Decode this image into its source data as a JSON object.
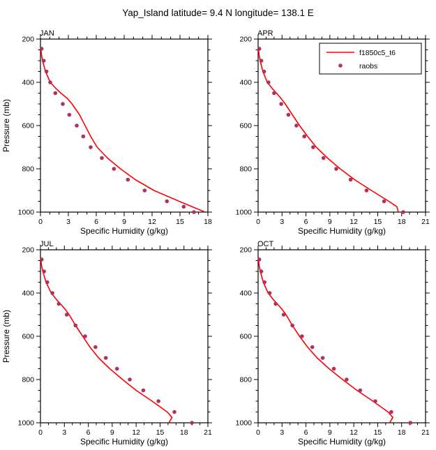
{
  "title": "Yap_Island  latitude= 9.4 N longitude= 138.1 E",
  "colors": {
    "model_line": "#fe0000",
    "raobs_marker": "#b03060",
    "axis": "#000000"
  },
  "legend": {
    "position": "top-right-of-APR-panel",
    "entries": [
      {
        "label": "f1850c5_t6",
        "style": "line",
        "color": "#fe0000"
      },
      {
        "label": "raobs",
        "style": "marker",
        "color": "#b03060"
      }
    ]
  },
  "chart_data": [
    {
      "type": "line",
      "panel_label": "JAN",
      "xlabel": "Specific Humidity (g/kg)",
      "ylabel": "Pressure (mb)",
      "show_ylabel": true,
      "show_legend": false,
      "xlim": [
        0,
        18
      ],
      "xticks": [
        0,
        3,
        6,
        9,
        12,
        15,
        18
      ],
      "xminor_step": 1,
      "ylim": [
        200,
        1000
      ],
      "y_inverted": true,
      "yticks": [
        200,
        400,
        600,
        800,
        1000
      ],
      "yminor_step": 50,
      "series": [
        {
          "name": "f1850c5_t6",
          "style": "line",
          "color": "#fe0000",
          "pressure_mb": [
            238,
            250,
            275,
            300,
            350,
            400,
            430,
            450,
            475,
            500,
            550,
            600,
            650,
            700,
            750,
            800,
            850,
            900,
            950,
            975,
            1000
          ],
          "humidity_gkg": [
            0.02,
            0.05,
            0.12,
            0.22,
            0.55,
            1.05,
            1.7,
            2.2,
            2.9,
            3.4,
            4.2,
            4.8,
            5.4,
            6.1,
            7.2,
            8.6,
            10.2,
            12.2,
            14.9,
            16.3,
            17.7
          ]
        },
        {
          "name": "raobs",
          "style": "scatter",
          "color": "#b03060",
          "pressure_mb": [
            245,
            300,
            350,
            400,
            450,
            500,
            550,
            600,
            650,
            700,
            750,
            800,
            850,
            900,
            950,
            975,
            1000
          ],
          "humidity_gkg": [
            0.12,
            0.35,
            0.65,
            1.05,
            1.6,
            2.4,
            3.1,
            3.9,
            4.6,
            5.4,
            6.6,
            7.9,
            9.4,
            11.2,
            13.6,
            15.4,
            16.5
          ]
        }
      ]
    },
    {
      "type": "line",
      "panel_label": "APR",
      "xlabel": "Specific Humidity (g/kg)",
      "ylabel": "Pressure (mb)",
      "show_ylabel": false,
      "show_legend": true,
      "xlim": [
        0,
        21
      ],
      "xticks": [
        0,
        3,
        6,
        9,
        12,
        15,
        18,
        21
      ],
      "xminor_step": 1,
      "ylim": [
        200,
        1000
      ],
      "y_inverted": true,
      "yticks": [
        200,
        400,
        600,
        800,
        1000
      ],
      "yminor_step": 50,
      "series": [
        {
          "name": "f1850c5_t6",
          "style": "line",
          "color": "#fe0000",
          "pressure_mb": [
            238,
            250,
            275,
            300,
            350,
            400,
            430,
            450,
            475,
            500,
            550,
            600,
            650,
            700,
            750,
            800,
            850,
            900,
            950,
            975,
            1000
          ],
          "humidity_gkg": [
            0.02,
            0.05,
            0.13,
            0.25,
            0.6,
            1.15,
            1.8,
            2.3,
            2.9,
            3.4,
            4.3,
            5.2,
            6.2,
            7.3,
            8.7,
            10.3,
            12.1,
            14.2,
            16.4,
            17.4,
            17.6
          ]
        },
        {
          "name": "raobs",
          "style": "scatter",
          "color": "#b03060",
          "pressure_mb": [
            245,
            300,
            350,
            400,
            450,
            500,
            550,
            600,
            650,
            700,
            750,
            800,
            850,
            900,
            950,
            1000
          ],
          "humidity_gkg": [
            0.15,
            0.4,
            0.75,
            1.3,
            2.0,
            2.9,
            3.8,
            4.8,
            5.8,
            6.9,
            8.2,
            9.8,
            11.6,
            13.6,
            15.8,
            18.2
          ]
        }
      ]
    },
    {
      "type": "line",
      "panel_label": "JUL",
      "xlabel": "Specific Humidity (g/kg)",
      "ylabel": "Pressure (mb)",
      "show_ylabel": true,
      "show_legend": false,
      "xlim": [
        0,
        21
      ],
      "xticks": [
        0,
        3,
        6,
        9,
        12,
        15,
        18,
        21
      ],
      "xminor_step": 1,
      "ylim": [
        200,
        1000
      ],
      "y_inverted": true,
      "yticks": [
        200,
        400,
        600,
        800,
        1000
      ],
      "yminor_step": 50,
      "series": [
        {
          "name": "f1850c5_t6",
          "style": "line",
          "color": "#fe0000",
          "pressure_mb": [
            238,
            250,
            275,
            300,
            350,
            400,
            430,
            450,
            475,
            500,
            550,
            600,
            650,
            700,
            750,
            800,
            850,
            900,
            950,
            975,
            1000
          ],
          "humidity_gkg": [
            0.03,
            0.06,
            0.15,
            0.3,
            0.7,
            1.35,
            2.0,
            2.5,
            3.1,
            3.6,
            4.4,
            5.3,
            6.2,
            7.3,
            8.7,
            10.3,
            12.0,
            14.0,
            15.9,
            16.5,
            16.1
          ]
        },
        {
          "name": "raobs",
          "style": "scatter",
          "color": "#b03060",
          "pressure_mb": [
            245,
            300,
            350,
            400,
            450,
            500,
            550,
            600,
            650,
            700,
            750,
            800,
            850,
            900,
            950,
            1000
          ],
          "humidity_gkg": [
            0.15,
            0.45,
            0.85,
            1.5,
            2.3,
            3.3,
            4.4,
            5.6,
            6.9,
            8.2,
            9.6,
            11.2,
            12.9,
            14.8,
            16.8,
            19.0
          ]
        }
      ]
    },
    {
      "type": "line",
      "panel_label": "OCT",
      "xlabel": "Specific Humidity (g/kg)",
      "ylabel": "Pressure (mb)",
      "show_ylabel": false,
      "show_legend": false,
      "xlim": [
        0,
        21
      ],
      "xticks": [
        0,
        3,
        6,
        9,
        12,
        15,
        18,
        21
      ],
      "xminor_step": 1,
      "ylim": [
        200,
        1000
      ],
      "y_inverted": true,
      "yticks": [
        200,
        400,
        600,
        800,
        1000
      ],
      "yminor_step": 50,
      "series": [
        {
          "name": "f1850c5_t6",
          "style": "line",
          "color": "#fe0000",
          "pressure_mb": [
            238,
            250,
            275,
            300,
            350,
            400,
            430,
            450,
            475,
            500,
            550,
            600,
            650,
            700,
            750,
            800,
            850,
            900,
            950,
            975,
            1000
          ],
          "humidity_gkg": [
            0.03,
            0.06,
            0.14,
            0.28,
            0.65,
            1.25,
            1.9,
            2.4,
            3.0,
            3.5,
            4.3,
            5.2,
            6.2,
            7.4,
            8.9,
            10.6,
            12.4,
            14.4,
            16.3,
            16.9,
            16.5
          ]
        },
        {
          "name": "raobs",
          "style": "scatter",
          "color": "#b03060",
          "pressure_mb": [
            245,
            300,
            350,
            400,
            450,
            500,
            550,
            600,
            650,
            700,
            750,
            800,
            850,
            900,
            950,
            1000
          ],
          "humidity_gkg": [
            0.15,
            0.4,
            0.8,
            1.45,
            2.2,
            3.2,
            4.3,
            5.5,
            6.8,
            8.1,
            9.5,
            11.1,
            12.8,
            14.7,
            16.7,
            19.1
          ]
        }
      ]
    }
  ]
}
